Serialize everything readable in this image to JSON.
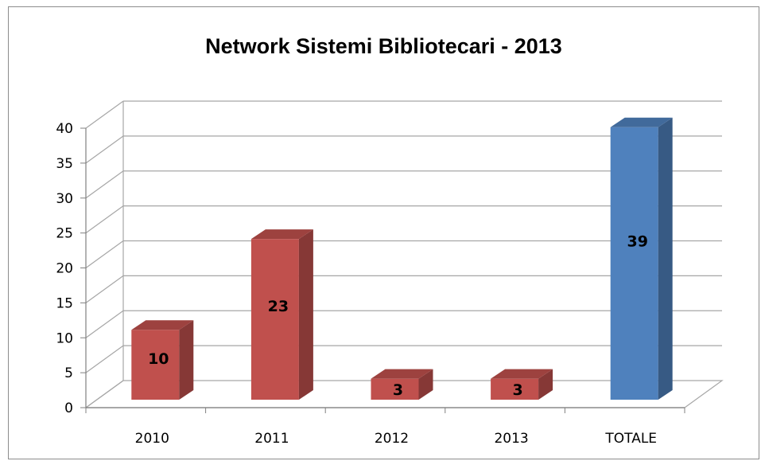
{
  "chart_data": {
    "type": "bar",
    "title": "Network Sistemi Bibliotecari - 2013",
    "xlabel": "",
    "ylabel": "",
    "categories": [
      "2010",
      "2011",
      "2012",
      "2013",
      "TOTALE"
    ],
    "values": [
      10,
      23,
      3,
      3,
      39
    ],
    "data_labels": [
      "10",
      "23",
      "3",
      "3",
      "39"
    ],
    "ylim": [
      0,
      40
    ],
    "y_ticks": [
      "0",
      "5",
      "10",
      "15",
      "20",
      "25",
      "30",
      "35",
      "40"
    ],
    "grid": true,
    "three_d": true,
    "legend": "none",
    "colors": {
      "bar_default": "#c0504d",
      "bar_highlight": "#4f81bd",
      "gridline": "#a6a6a6"
    },
    "highlight_category": "TOTALE"
  }
}
